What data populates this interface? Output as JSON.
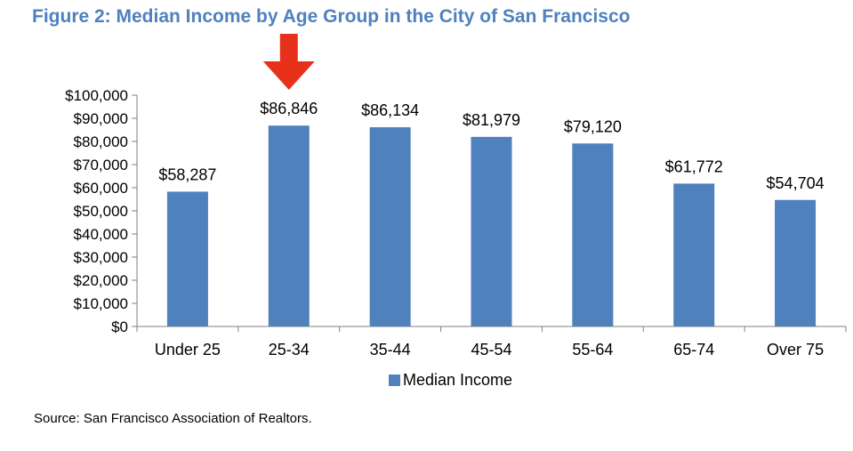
{
  "figure_title": "Figure 2: Median Income by Age Group in the City of San Francisco",
  "source_note": "Source: San Francisco Association of Realtors.",
  "colors": {
    "bar": "#4f81bd",
    "title": "#4f81bd",
    "highlight_arrow": "#e8311a",
    "axis": "#808080"
  },
  "highlight": {
    "category": "25-34",
    "icon": "down-arrow-icon"
  },
  "chart_data": {
    "type": "bar",
    "title": "",
    "xlabel": "",
    "ylabel": "",
    "categories": [
      "Under 25",
      "25-34",
      "35-44",
      "45-54",
      "55-64",
      "65-74",
      "Over 75"
    ],
    "series": [
      {
        "name": "Median Income",
        "values": [
          58287,
          86846,
          86134,
          81979,
          79120,
          61772,
          54704
        ],
        "data_labels": [
          "$58,287",
          "$86,846",
          "$86,134",
          "$81,979",
          "$79,120",
          "$61,772",
          "$54,704"
        ]
      }
    ],
    "ylim": [
      0,
      100000
    ],
    "yticks": [
      0,
      10000,
      20000,
      30000,
      40000,
      50000,
      60000,
      70000,
      80000,
      90000,
      100000
    ],
    "ytick_labels": [
      "$0",
      "$10,000",
      "$20,000",
      "$30,000",
      "$40,000",
      "$50,000",
      "$60,000",
      "$70,000",
      "$80,000",
      "$90,000",
      "$100,000"
    ],
    "grid": false,
    "legend": {
      "position": "bottom",
      "entries": [
        "Median Income"
      ]
    }
  }
}
